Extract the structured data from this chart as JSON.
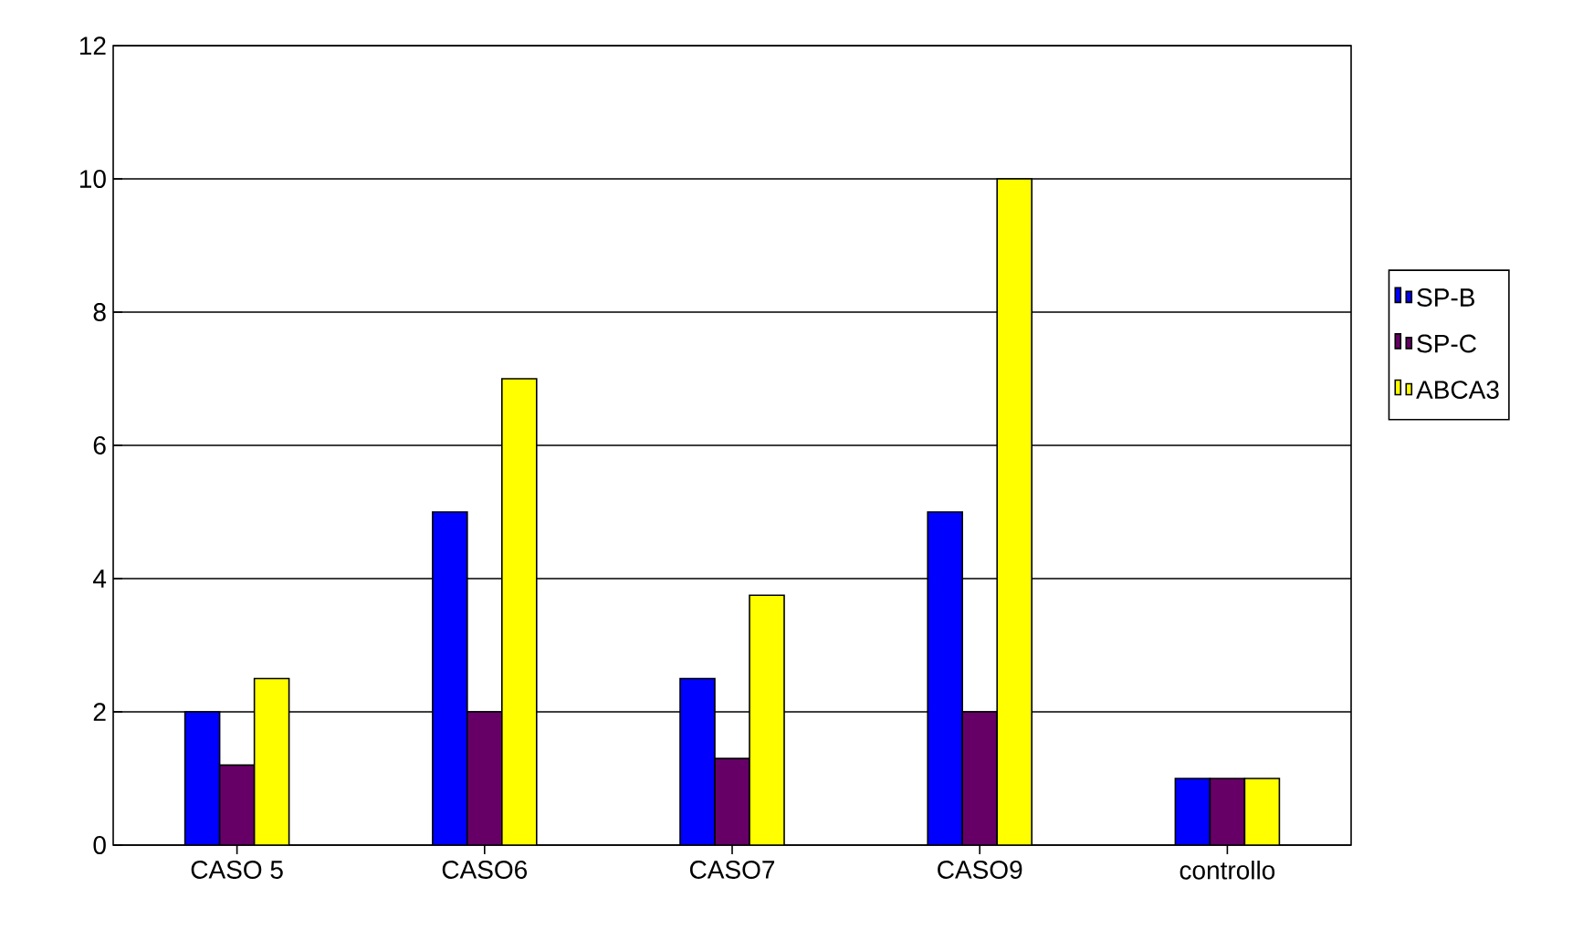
{
  "chart_data": {
    "type": "bar",
    "categories": [
      "CASO 5",
      "CASO6",
      "CASO7",
      "CASO9",
      "controllo"
    ],
    "series": [
      {
        "name": "SP-B",
        "color": "#0000ff",
        "values": [
          2,
          5,
          2.5,
          5,
          1
        ]
      },
      {
        "name": "SP-C",
        "color": "#660066",
        "values": [
          1.2,
          2,
          1.3,
          2,
          1
        ]
      },
      {
        "name": "ABCA3",
        "color": "#ffff00",
        "values": [
          2.5,
          7,
          3.75,
          10,
          1
        ]
      }
    ],
    "ylim": [
      0,
      12
    ],
    "yticks": [
      0,
      2,
      4,
      6,
      8,
      10,
      12
    ],
    "grid": "y",
    "legend": "right"
  }
}
